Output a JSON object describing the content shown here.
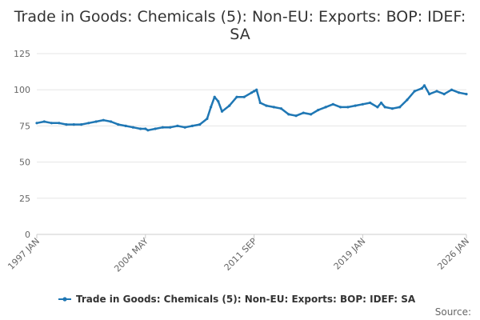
{
  "chart_data": {
    "type": "line",
    "title_lines": [
      "Trade in Goods: Chemicals (5): Non-EU: Exports: BOP: IDEF:",
      "SA"
    ],
    "series": [
      {
        "name": "Trade in Goods: Chemicals (5): Non-EU: Exports: BOP: IDEF: SA",
        "color": "#1f77b4",
        "points": [
          [
            "1997 JAN",
            77
          ],
          [
            "1997 JUL",
            78
          ],
          [
            "1998 JAN",
            77
          ],
          [
            "1998 JUL",
            77
          ],
          [
            "1999 JAN",
            76
          ],
          [
            "1999 JUL",
            76
          ],
          [
            "2000 JAN",
            76
          ],
          [
            "2000 JUL",
            77
          ],
          [
            "2001 JAN",
            78
          ],
          [
            "2001 JUL",
            79
          ],
          [
            "2002 JAN",
            78
          ],
          [
            "2002 JUL",
            76
          ],
          [
            "2003 JAN",
            75
          ],
          [
            "2003 JUL",
            74
          ],
          [
            "2004 JAN",
            73
          ],
          [
            "2004 MAY",
            73
          ],
          [
            "2004 JUL",
            72
          ],
          [
            "2005 JAN",
            73
          ],
          [
            "2005 JUL",
            74
          ],
          [
            "2006 JAN",
            74
          ],
          [
            "2006 JUL",
            75
          ],
          [
            "2007 JAN",
            74
          ],
          [
            "2007 JUL",
            75
          ],
          [
            "2008 JAN",
            76
          ],
          [
            "2008 JUL",
            80
          ],
          [
            "2008 OCT",
            88
          ],
          [
            "2009 JAN",
            95
          ],
          [
            "2009 APR",
            92
          ],
          [
            "2009 JUL",
            85
          ],
          [
            "2010 JAN",
            89
          ],
          [
            "2010 JUL",
            95
          ],
          [
            "2011 JAN",
            95
          ],
          [
            "2011 JUL",
            98
          ],
          [
            "2011 SEP",
            99
          ],
          [
            "2011 NOV",
            100
          ],
          [
            "2012 FEB",
            91
          ],
          [
            "2012 JUL",
            89
          ],
          [
            "2013 JAN",
            88
          ],
          [
            "2013 JUL",
            87
          ],
          [
            "2014 JAN",
            83
          ],
          [
            "2014 JUL",
            82
          ],
          [
            "2015 JAN",
            84
          ],
          [
            "2015 JUL",
            83
          ],
          [
            "2016 JAN",
            86
          ],
          [
            "2016 JUL",
            88
          ],
          [
            "2017 JAN",
            90
          ],
          [
            "2017 JUL",
            88
          ],
          [
            "2018 JAN",
            88
          ],
          [
            "2018 JUL",
            89
          ],
          [
            "2019 JAN",
            90
          ],
          [
            "2019 JUL",
            91
          ],
          [
            "2020 JAN",
            88
          ],
          [
            "2020 APR",
            91
          ],
          [
            "2020 JUL",
            88
          ],
          [
            "2021 JAN",
            87
          ],
          [
            "2021 JUL",
            88
          ],
          [
            "2022 JAN",
            93
          ],
          [
            "2022 JUL",
            99
          ],
          [
            "2023 JAN",
            101
          ],
          [
            "2023 MAR",
            103
          ],
          [
            "2023 JUL",
            97
          ],
          [
            "2024 JAN",
            99
          ],
          [
            "2024 JUL",
            97
          ],
          [
            "2025 JAN",
            100
          ],
          [
            "2025 JUL",
            98
          ],
          [
            "2026 JAN",
            97
          ]
        ]
      }
    ],
    "x_tick_labels": [
      "1997 JAN",
      "2004 MAY",
      "2011 SEP",
      "2019 JAN",
      "2026 JAN"
    ],
    "x_range": [
      "1997 JAN",
      "2026 JAN"
    ],
    "y_ticks": [
      0,
      25,
      50,
      75,
      100,
      125
    ],
    "ylim": [
      0,
      125
    ],
    "grid": true,
    "legend_position": "bottom",
    "source_label": "Source:"
  }
}
